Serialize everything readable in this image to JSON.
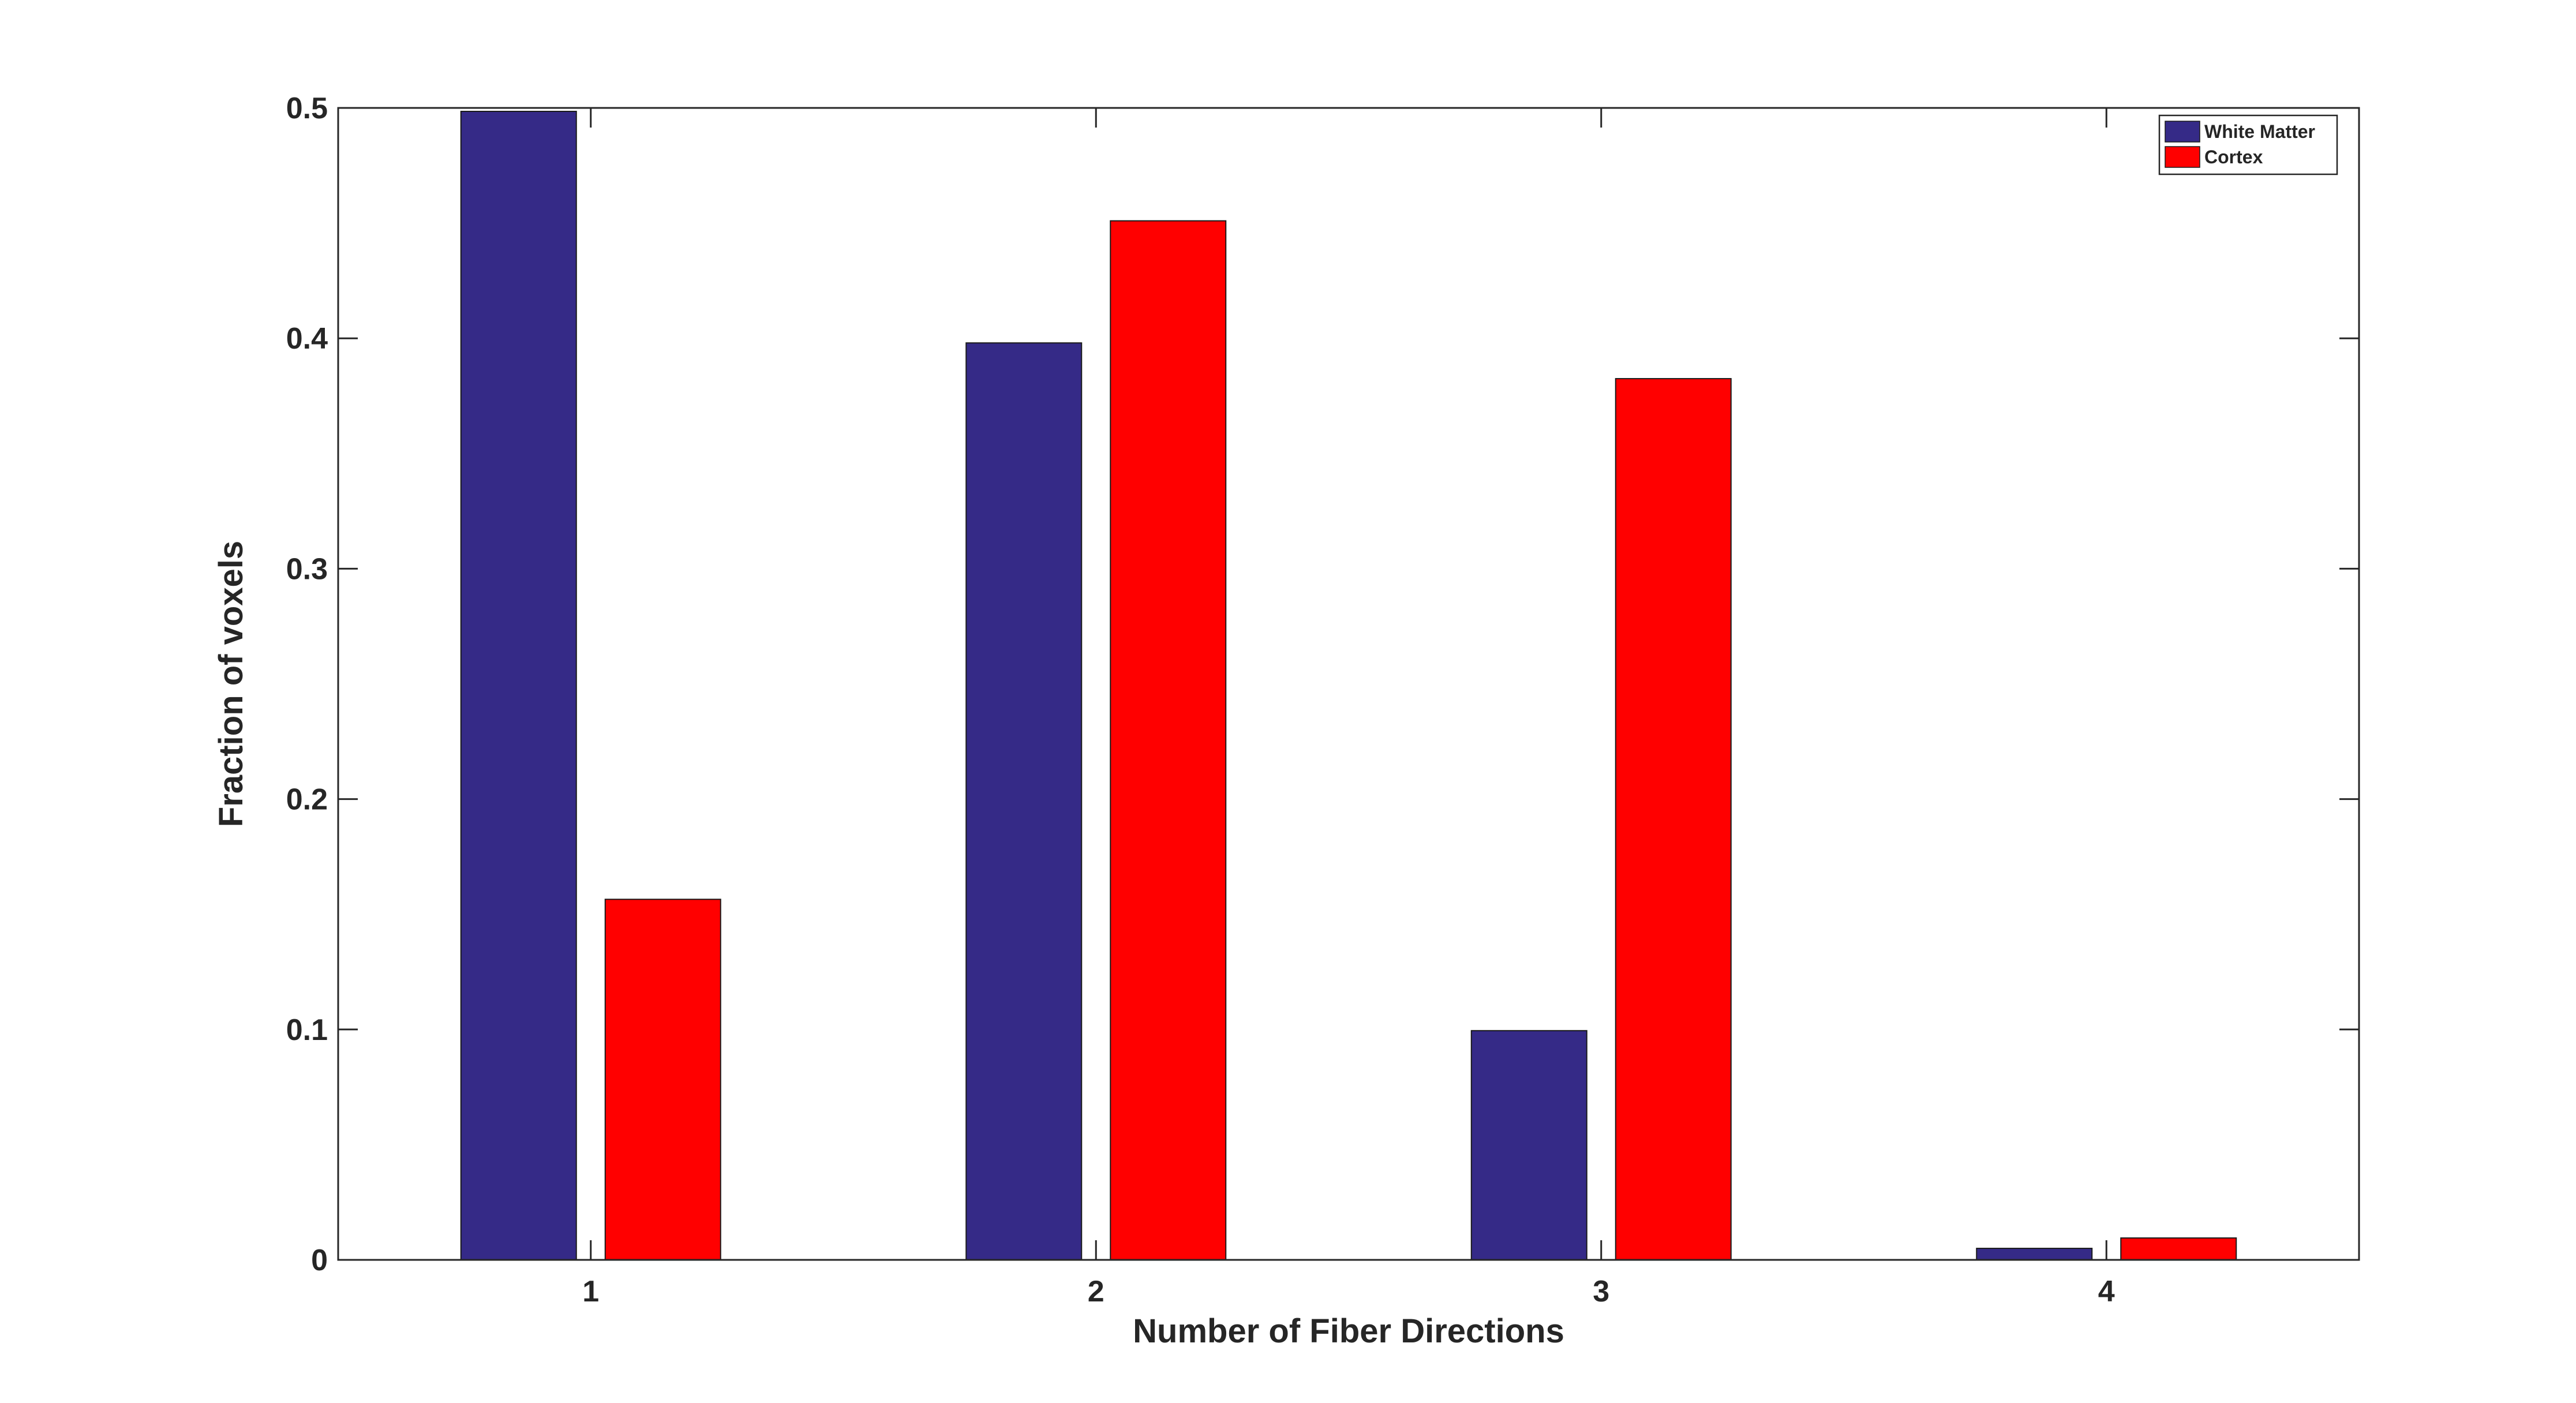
{
  "chart_data": {
    "type": "bar",
    "title": "",
    "xlabel": "Number of Fiber Directions",
    "ylabel": "Fraction of voxels",
    "categories": [
      "1",
      "2",
      "3",
      "4"
    ],
    "series": [
      {
        "name": "White Matter",
        "color": "#352A87",
        "values": [
          0.4985,
          0.398,
          0.0995,
          0.005
        ]
      },
      {
        "name": "Cortex",
        "color": "#FF0000",
        "values": [
          0.1565,
          0.451,
          0.3825,
          0.0095
        ]
      }
    ],
    "ylim": [
      0,
      0.5
    ],
    "yticks": [
      "0",
      "0.1",
      "0.2",
      "0.3",
      "0.4",
      "0.5"
    ],
    "grid": false,
    "legend_position": "top-right"
  }
}
